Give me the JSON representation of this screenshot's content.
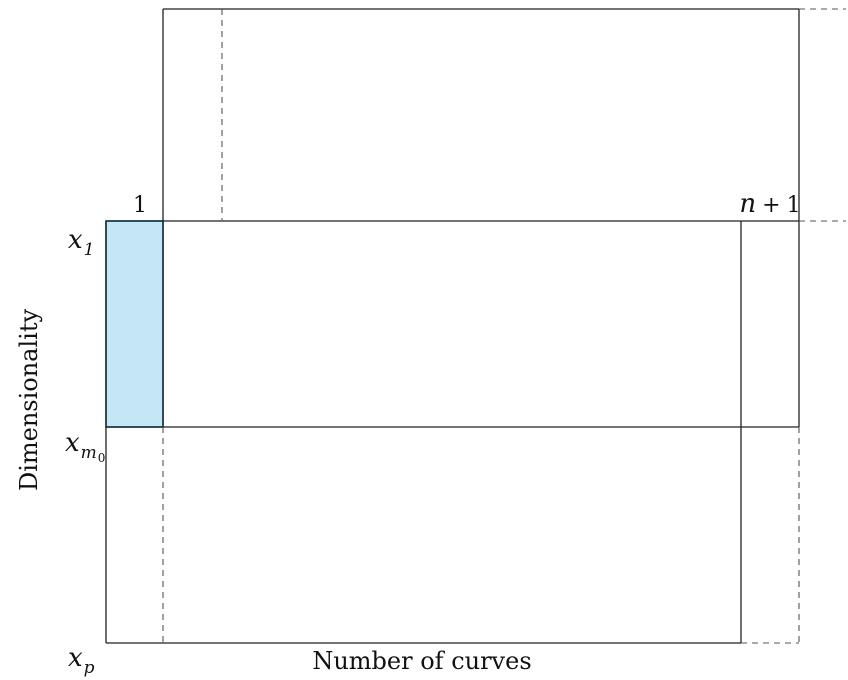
{
  "axes": {
    "x_label": "Number of curves",
    "y_label": "Dimensionality"
  },
  "column_labels": {
    "first": "1",
    "last": {
      "variable": "n",
      "operator": "+",
      "constant": "1"
    }
  },
  "row_labels": {
    "top": {
      "base": "x",
      "subscript": "1"
    },
    "middle": {
      "base": "x",
      "subscript": "m",
      "sub_subscript": "0"
    },
    "bottom": {
      "base": "x",
      "subscript": "p"
    }
  },
  "colors": {
    "highlight_fill": "#c4e6f5",
    "highlight_stroke": "#2f7fa5",
    "line": "#222222",
    "dashed": "#555555"
  }
}
